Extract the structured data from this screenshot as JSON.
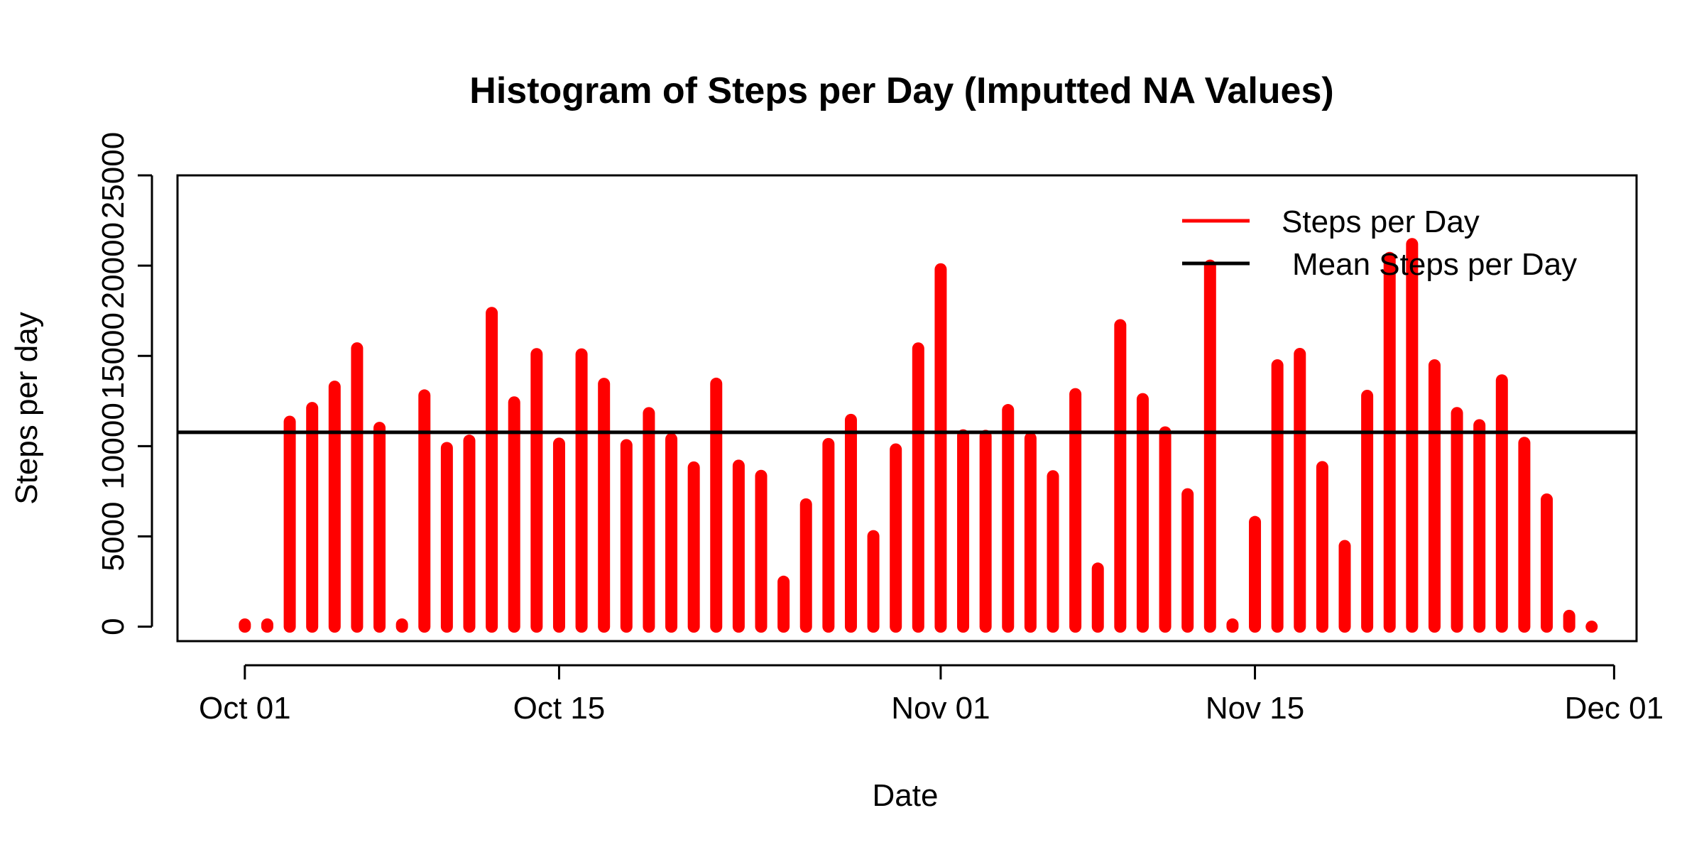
{
  "chart_data": {
    "type": "bar",
    "title": "Histogram of Steps per Day (Imputted NA Values)",
    "xlabel": "Date",
    "ylabel": "Steps per day",
    "ylim": [
      -800,
      25000
    ],
    "yticks": [
      0,
      5000,
      10000,
      15000,
      20000,
      25000
    ],
    "ytick_labels": [
      "0",
      "5000",
      "10000",
      "15000",
      "20000",
      "25000"
    ],
    "xlim": [
      "2012-09-28",
      "2012-12-02"
    ],
    "xticks": [
      "2012-10-01",
      "2012-10-15",
      "2012-11-01",
      "2012-11-15",
      "2012-12-01"
    ],
    "xtick_labels": [
      "Oct 01",
      "Oct 15",
      "Nov 01",
      "Nov 15",
      "Dec 01"
    ],
    "grid": false,
    "legend_position": "top-right",
    "colors": {
      "steps": "#ff0000",
      "mean": "#000000",
      "axis": "#000000"
    },
    "series": [
      {
        "name": "Steps per Day",
        "style": "histogram-bars",
        "x": [
          "2012-10-01",
          "2012-10-02",
          "2012-10-03",
          "2012-10-04",
          "2012-10-05",
          "2012-10-06",
          "2012-10-07",
          "2012-10-08",
          "2012-10-09",
          "2012-10-10",
          "2012-10-11",
          "2012-10-12",
          "2012-10-13",
          "2012-10-14",
          "2012-10-15",
          "2012-10-16",
          "2012-10-17",
          "2012-10-18",
          "2012-10-19",
          "2012-10-20",
          "2012-10-21",
          "2012-10-22",
          "2012-10-23",
          "2012-10-24",
          "2012-10-25",
          "2012-10-26",
          "2012-10-27",
          "2012-10-28",
          "2012-10-29",
          "2012-10-30",
          "2012-10-31",
          "2012-11-01",
          "2012-11-02",
          "2012-11-03",
          "2012-11-04",
          "2012-11-05",
          "2012-11-06",
          "2012-11-07",
          "2012-11-08",
          "2012-11-09",
          "2012-11-10",
          "2012-11-11",
          "2012-11-12",
          "2012-11-13",
          "2012-11-14",
          "2012-11-15",
          "2012-11-16",
          "2012-11-17",
          "2012-11-18",
          "2012-11-19",
          "2012-11-20",
          "2012-11-21",
          "2012-11-22",
          "2012-11-23",
          "2012-11-24",
          "2012-11-25",
          "2012-11-26",
          "2012-11-27",
          "2012-11-28",
          "2012-11-29",
          "2012-11-30"
        ],
        "values": [
          126,
          126,
          11352,
          12116,
          13294,
          15420,
          11015,
          126,
          12811,
          9900,
          10304,
          17382,
          12426,
          15098,
          10139,
          15084,
          13452,
          10056,
          11829,
          10395,
          8821,
          13460,
          8918,
          8355,
          2492,
          6778,
          10119,
          11458,
          5018,
          9819,
          15414,
          19800,
          10600,
          10571,
          12000,
          10439,
          8334,
          12883,
          3219,
          16700,
          12608,
          10765,
          7336,
          20000,
          126,
          5800,
          14478,
          15110,
          8841,
          4472,
          12787,
          20427,
          21194,
          14478,
          11834,
          11162,
          13646,
          10183,
          7047,
          600,
          0
        ]
      },
      {
        "name": "Mean Steps per Day",
        "style": "horizontal-line",
        "value": 10766
      }
    ],
    "legend": [
      "Steps per Day",
      "Mean Steps per Day"
    ]
  }
}
